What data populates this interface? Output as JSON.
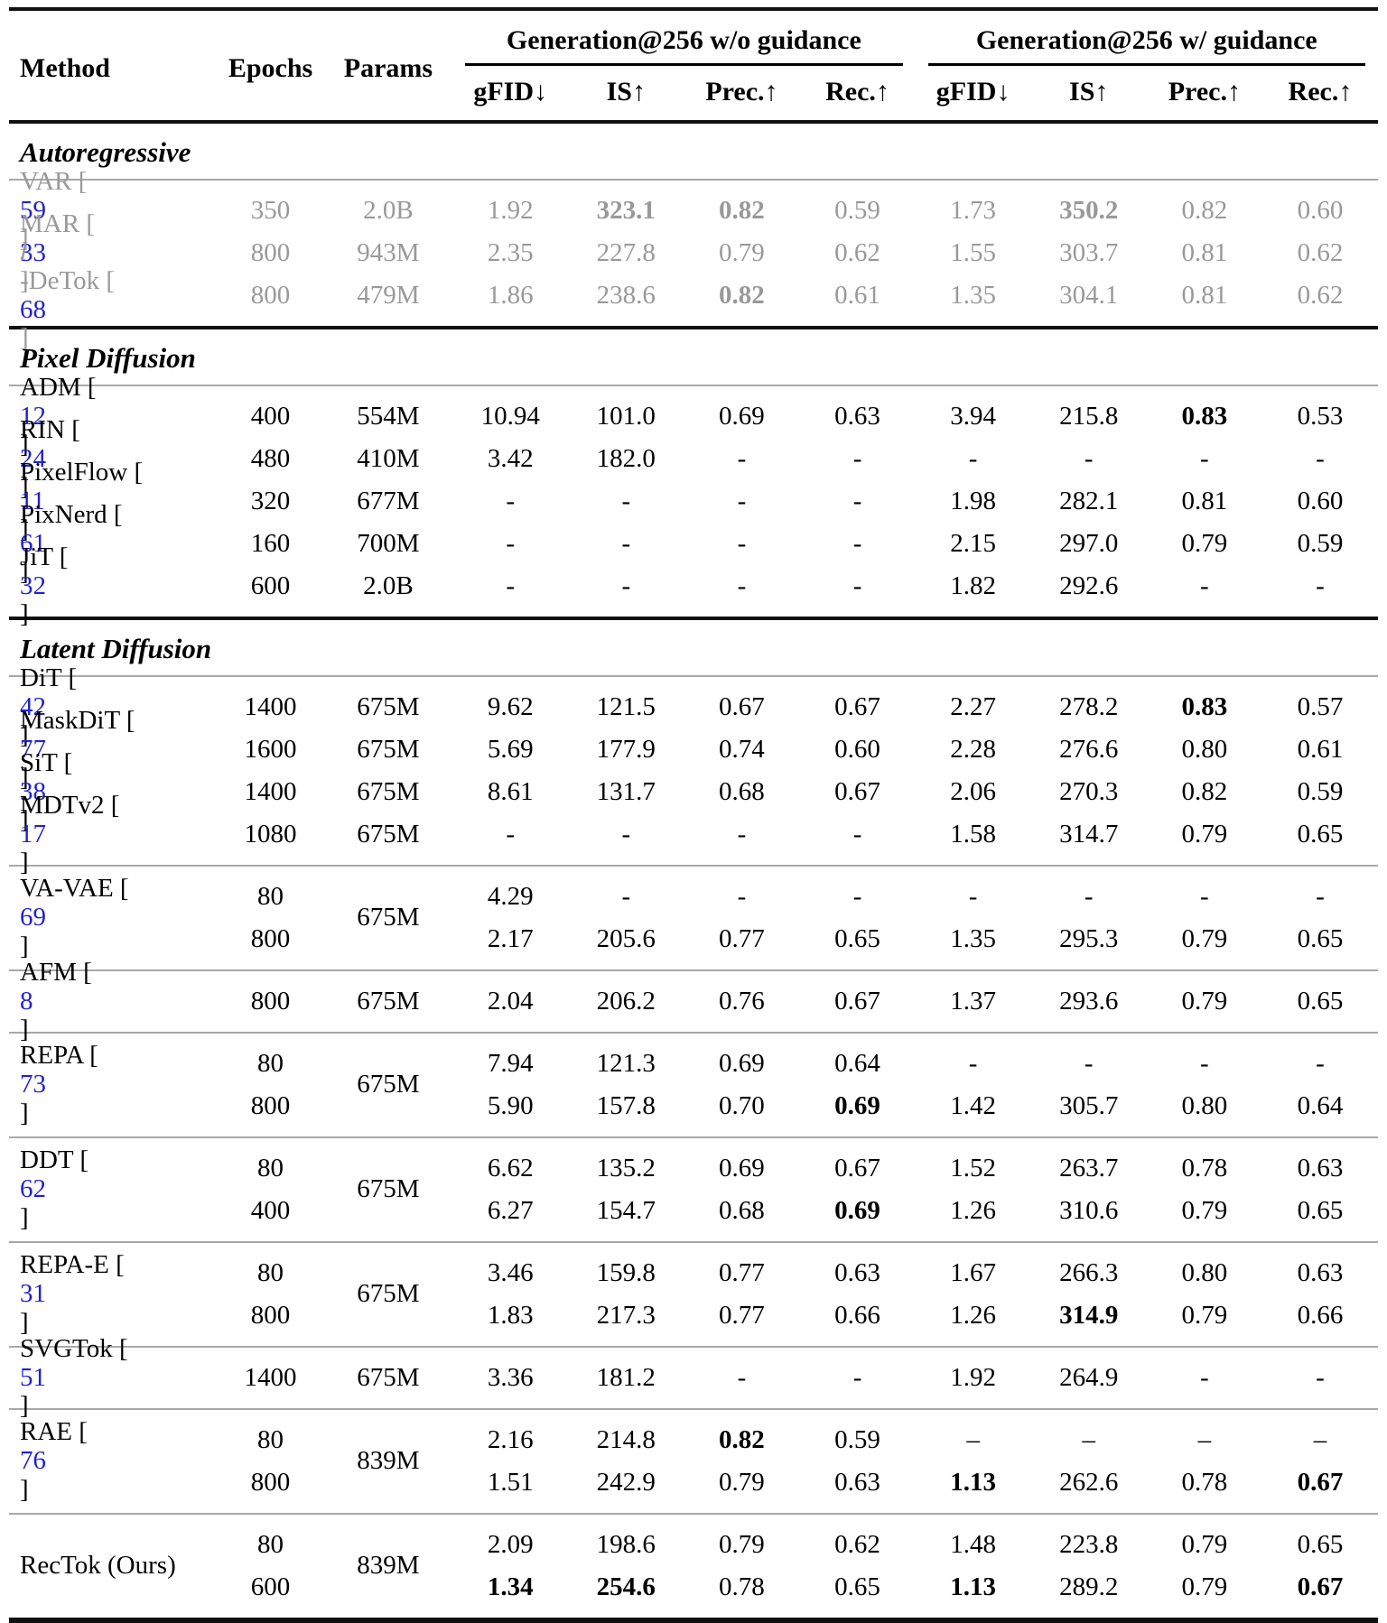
{
  "header": {
    "method": "Method",
    "epochs": "Epochs",
    "params": "Params",
    "groups": [
      "Generation@256 w/o guidance",
      "Generation@256 w/ guidance"
    ],
    "metrics": [
      "gFID↓",
      "IS↑",
      "Prec.↑",
      "Rec.↑",
      "gFID↓",
      "IS↑",
      "Prec.↑",
      "Rec.↑"
    ]
  },
  "colors": {
    "citation_blue": "#2222cc",
    "muted_gray": "#999999"
  },
  "sections": [
    {
      "label": "Autoregressive",
      "muted": true,
      "blocks": [
        [
          {
            "name": "VAR",
            "ref": "59",
            "params": "2.0B",
            "rows": [
              {
                "epochs": "350",
                "cells": [
                  "1.92",
                  {
                    "v": "323.1",
                    "b": 1
                  },
                  {
                    "v": "0.82",
                    "b": 1
                  },
                  "0.59",
                  "1.73",
                  {
                    "v": "350.2",
                    "b": 1
                  },
                  "0.82",
                  "0.60"
                ]
              }
            ]
          },
          {
            "name": "MAR",
            "ref": "33",
            "params": "943M",
            "rows": [
              {
                "epochs": "800",
                "cells": [
                  "2.35",
                  "227.8",
                  "0.79",
                  "0.62",
                  "1.55",
                  "303.7",
                  "0.81",
                  "0.62"
                ]
              }
            ]
          },
          {
            "pre": "l",
            "name": "-DeTok",
            "ref": "68",
            "params": "479M",
            "rows": [
              {
                "epochs": "800",
                "cells": [
                  "1.86",
                  "238.6",
                  {
                    "v": "0.82",
                    "b": 1
                  },
                  "0.61",
                  "1.35",
                  "304.1",
                  "0.81",
                  "0.62"
                ]
              }
            ]
          }
        ]
      ]
    },
    {
      "label": "Pixel Diffusion",
      "muted": false,
      "blocks": [
        [
          {
            "name": "ADM",
            "ref": "12",
            "params": "554M",
            "rows": [
              {
                "epochs": "400",
                "cells": [
                  "10.94",
                  "101.0",
                  "0.69",
                  "0.63",
                  "3.94",
                  "215.8",
                  {
                    "v": "0.83",
                    "b": 1
                  },
                  "0.53"
                ]
              }
            ]
          },
          {
            "name": "RIN",
            "ref": "24",
            "params": "410M",
            "rows": [
              {
                "epochs": "480",
                "cells": [
                  "3.42",
                  "182.0",
                  "-",
                  "-",
                  "-",
                  "-",
                  "-",
                  "-"
                ]
              }
            ]
          },
          {
            "name": "PixelFlow",
            "ref": "11",
            "params": "677M",
            "rows": [
              {
                "epochs": "320",
                "cells": [
                  "-",
                  "-",
                  "-",
                  "-",
                  "1.98",
                  "282.1",
                  "0.81",
                  "0.60"
                ]
              }
            ]
          },
          {
            "name": "PixNerd",
            "ref": "61",
            "params": "700M",
            "rows": [
              {
                "epochs": "160",
                "cells": [
                  "-",
                  "-",
                  "-",
                  "-",
                  "2.15",
                  "297.0",
                  "0.79",
                  "0.59"
                ]
              }
            ]
          },
          {
            "name": "JiT",
            "ref": "32",
            "params": "2.0B",
            "rows": [
              {
                "epochs": "600",
                "cells": [
                  "-",
                  "-",
                  "-",
                  "-",
                  "1.82",
                  "292.6",
                  "-",
                  "-"
                ]
              }
            ]
          }
        ]
      ]
    },
    {
      "label": "Latent Diffusion",
      "muted": false,
      "blocks": [
        [
          {
            "name": "DiT",
            "ref": "42",
            "params": "675M",
            "rows": [
              {
                "epochs": "1400",
                "cells": [
                  "9.62",
                  "121.5",
                  "0.67",
                  "0.67",
                  "2.27",
                  "278.2",
                  {
                    "v": "0.83",
                    "b": 1
                  },
                  "0.57"
                ]
              }
            ]
          },
          {
            "name": "MaskDiT",
            "ref": "77",
            "params": "675M",
            "rows": [
              {
                "epochs": "1600",
                "cells": [
                  "5.69",
                  "177.9",
                  "0.74",
                  "0.60",
                  "2.28",
                  "276.6",
                  "0.80",
                  "0.61"
                ]
              }
            ]
          },
          {
            "name": "SiT",
            "ref": "38",
            "params": "675M",
            "rows": [
              {
                "epochs": "1400",
                "cells": [
                  "8.61",
                  "131.7",
                  "0.68",
                  "0.67",
                  "2.06",
                  "270.3",
                  "0.82",
                  "0.59"
                ]
              }
            ]
          },
          {
            "name": "MDTv2",
            "ref": "17",
            "params": "675M",
            "rows": [
              {
                "epochs": "1080",
                "cells": [
                  "-",
                  "-",
                  "-",
                  "-",
                  "1.58",
                  "314.7",
                  "0.79",
                  "0.65"
                ]
              }
            ]
          }
        ],
        [
          {
            "name": "VA-VAE",
            "ref": "69",
            "params": "675M",
            "rows": [
              {
                "epochs": "80",
                "cells": [
                  "4.29",
                  "-",
                  "-",
                  "-",
                  "-",
                  "-",
                  "-",
                  "-"
                ]
              },
              {
                "epochs": "800",
                "cells": [
                  "2.17",
                  "205.6",
                  "0.77",
                  "0.65",
                  "1.35",
                  "295.3",
                  "0.79",
                  "0.65"
                ]
              }
            ]
          }
        ],
        [
          {
            "name": "AFM",
            "ref": "8",
            "params": "675M",
            "rows": [
              {
                "epochs": "800",
                "cells": [
                  "2.04",
                  "206.2",
                  "0.76",
                  "0.67",
                  "1.37",
                  "293.6",
                  "0.79",
                  "0.65"
                ]
              }
            ]
          }
        ],
        [
          {
            "name": "REPA",
            "ref": "73",
            "params": "675M",
            "rows": [
              {
                "epochs": "80",
                "cells": [
                  "7.94",
                  "121.3",
                  "0.69",
                  "0.64",
                  "-",
                  "-",
                  "-",
                  "-"
                ]
              },
              {
                "epochs": "800",
                "cells": [
                  "5.90",
                  "157.8",
                  "0.70",
                  {
                    "v": "0.69",
                    "b": 1
                  },
                  "1.42",
                  "305.7",
                  "0.80",
                  "0.64"
                ]
              }
            ]
          }
        ],
        [
          {
            "name": "DDT",
            "ref": "62",
            "params": "675M",
            "rows": [
              {
                "epochs": "80",
                "cells": [
                  "6.62",
                  "135.2",
                  "0.69",
                  "0.67",
                  "1.52",
                  "263.7",
                  "0.78",
                  "0.63"
                ]
              },
              {
                "epochs": "400",
                "cells": [
                  "6.27",
                  "154.7",
                  "0.68",
                  {
                    "v": "0.69",
                    "b": 1
                  },
                  "1.26",
                  "310.6",
                  "0.79",
                  "0.65"
                ]
              }
            ]
          }
        ],
        [
          {
            "name": "REPA-E",
            "ref": "31",
            "params": "675M",
            "rows": [
              {
                "epochs": "80",
                "cells": [
                  "3.46",
                  "159.8",
                  "0.77",
                  "0.63",
                  "1.67",
                  "266.3",
                  "0.80",
                  "0.63"
                ]
              },
              {
                "epochs": "800",
                "cells": [
                  "1.83",
                  "217.3",
                  "0.77",
                  "0.66",
                  "1.26",
                  {
                    "v": "314.9",
                    "b": 1
                  },
                  "0.79",
                  "0.66"
                ]
              }
            ]
          }
        ],
        [
          {
            "name": "SVGTok",
            "ref": "51",
            "params": "675M",
            "rows": [
              {
                "epochs": "1400",
                "cells": [
                  "3.36",
                  "181.2",
                  "-",
                  "-",
                  "1.92",
                  "264.9",
                  "-",
                  "-"
                ]
              }
            ]
          }
        ],
        [
          {
            "name": "RAE",
            "ref": "76",
            "params": "839M",
            "rows": [
              {
                "epochs": "80",
                "cells": [
                  "2.16",
                  "214.8",
                  {
                    "v": "0.82",
                    "b": 1
                  },
                  "0.59",
                  "–",
                  "–",
                  "–",
                  "–"
                ]
              },
              {
                "epochs": "800",
                "cells": [
                  "1.51",
                  "242.9",
                  "0.79",
                  "0.63",
                  {
                    "v": "1.13",
                    "b": 1
                  },
                  "262.6",
                  "0.78",
                  {
                    "v": "0.67",
                    "b": 1
                  }
                ]
              }
            ]
          }
        ],
        [
          {
            "name": "RecTok (Ours)",
            "params": "839M",
            "rows": [
              {
                "epochs": "80",
                "cells": [
                  "2.09",
                  "198.6",
                  "0.79",
                  "0.62",
                  "1.48",
                  "223.8",
                  "0.79",
                  "0.65"
                ]
              },
              {
                "epochs": "600",
                "cells": [
                  {
                    "v": "1.34",
                    "b": 1
                  },
                  {
                    "v": "254.6",
                    "b": 1
                  },
                  "0.78",
                  "0.65",
                  {
                    "v": "1.13",
                    "b": 1
                  },
                  "289.2",
                  "0.79",
                  {
                    "v": "0.67",
                    "b": 1
                  }
                ]
              }
            ]
          }
        ]
      ]
    }
  ]
}
